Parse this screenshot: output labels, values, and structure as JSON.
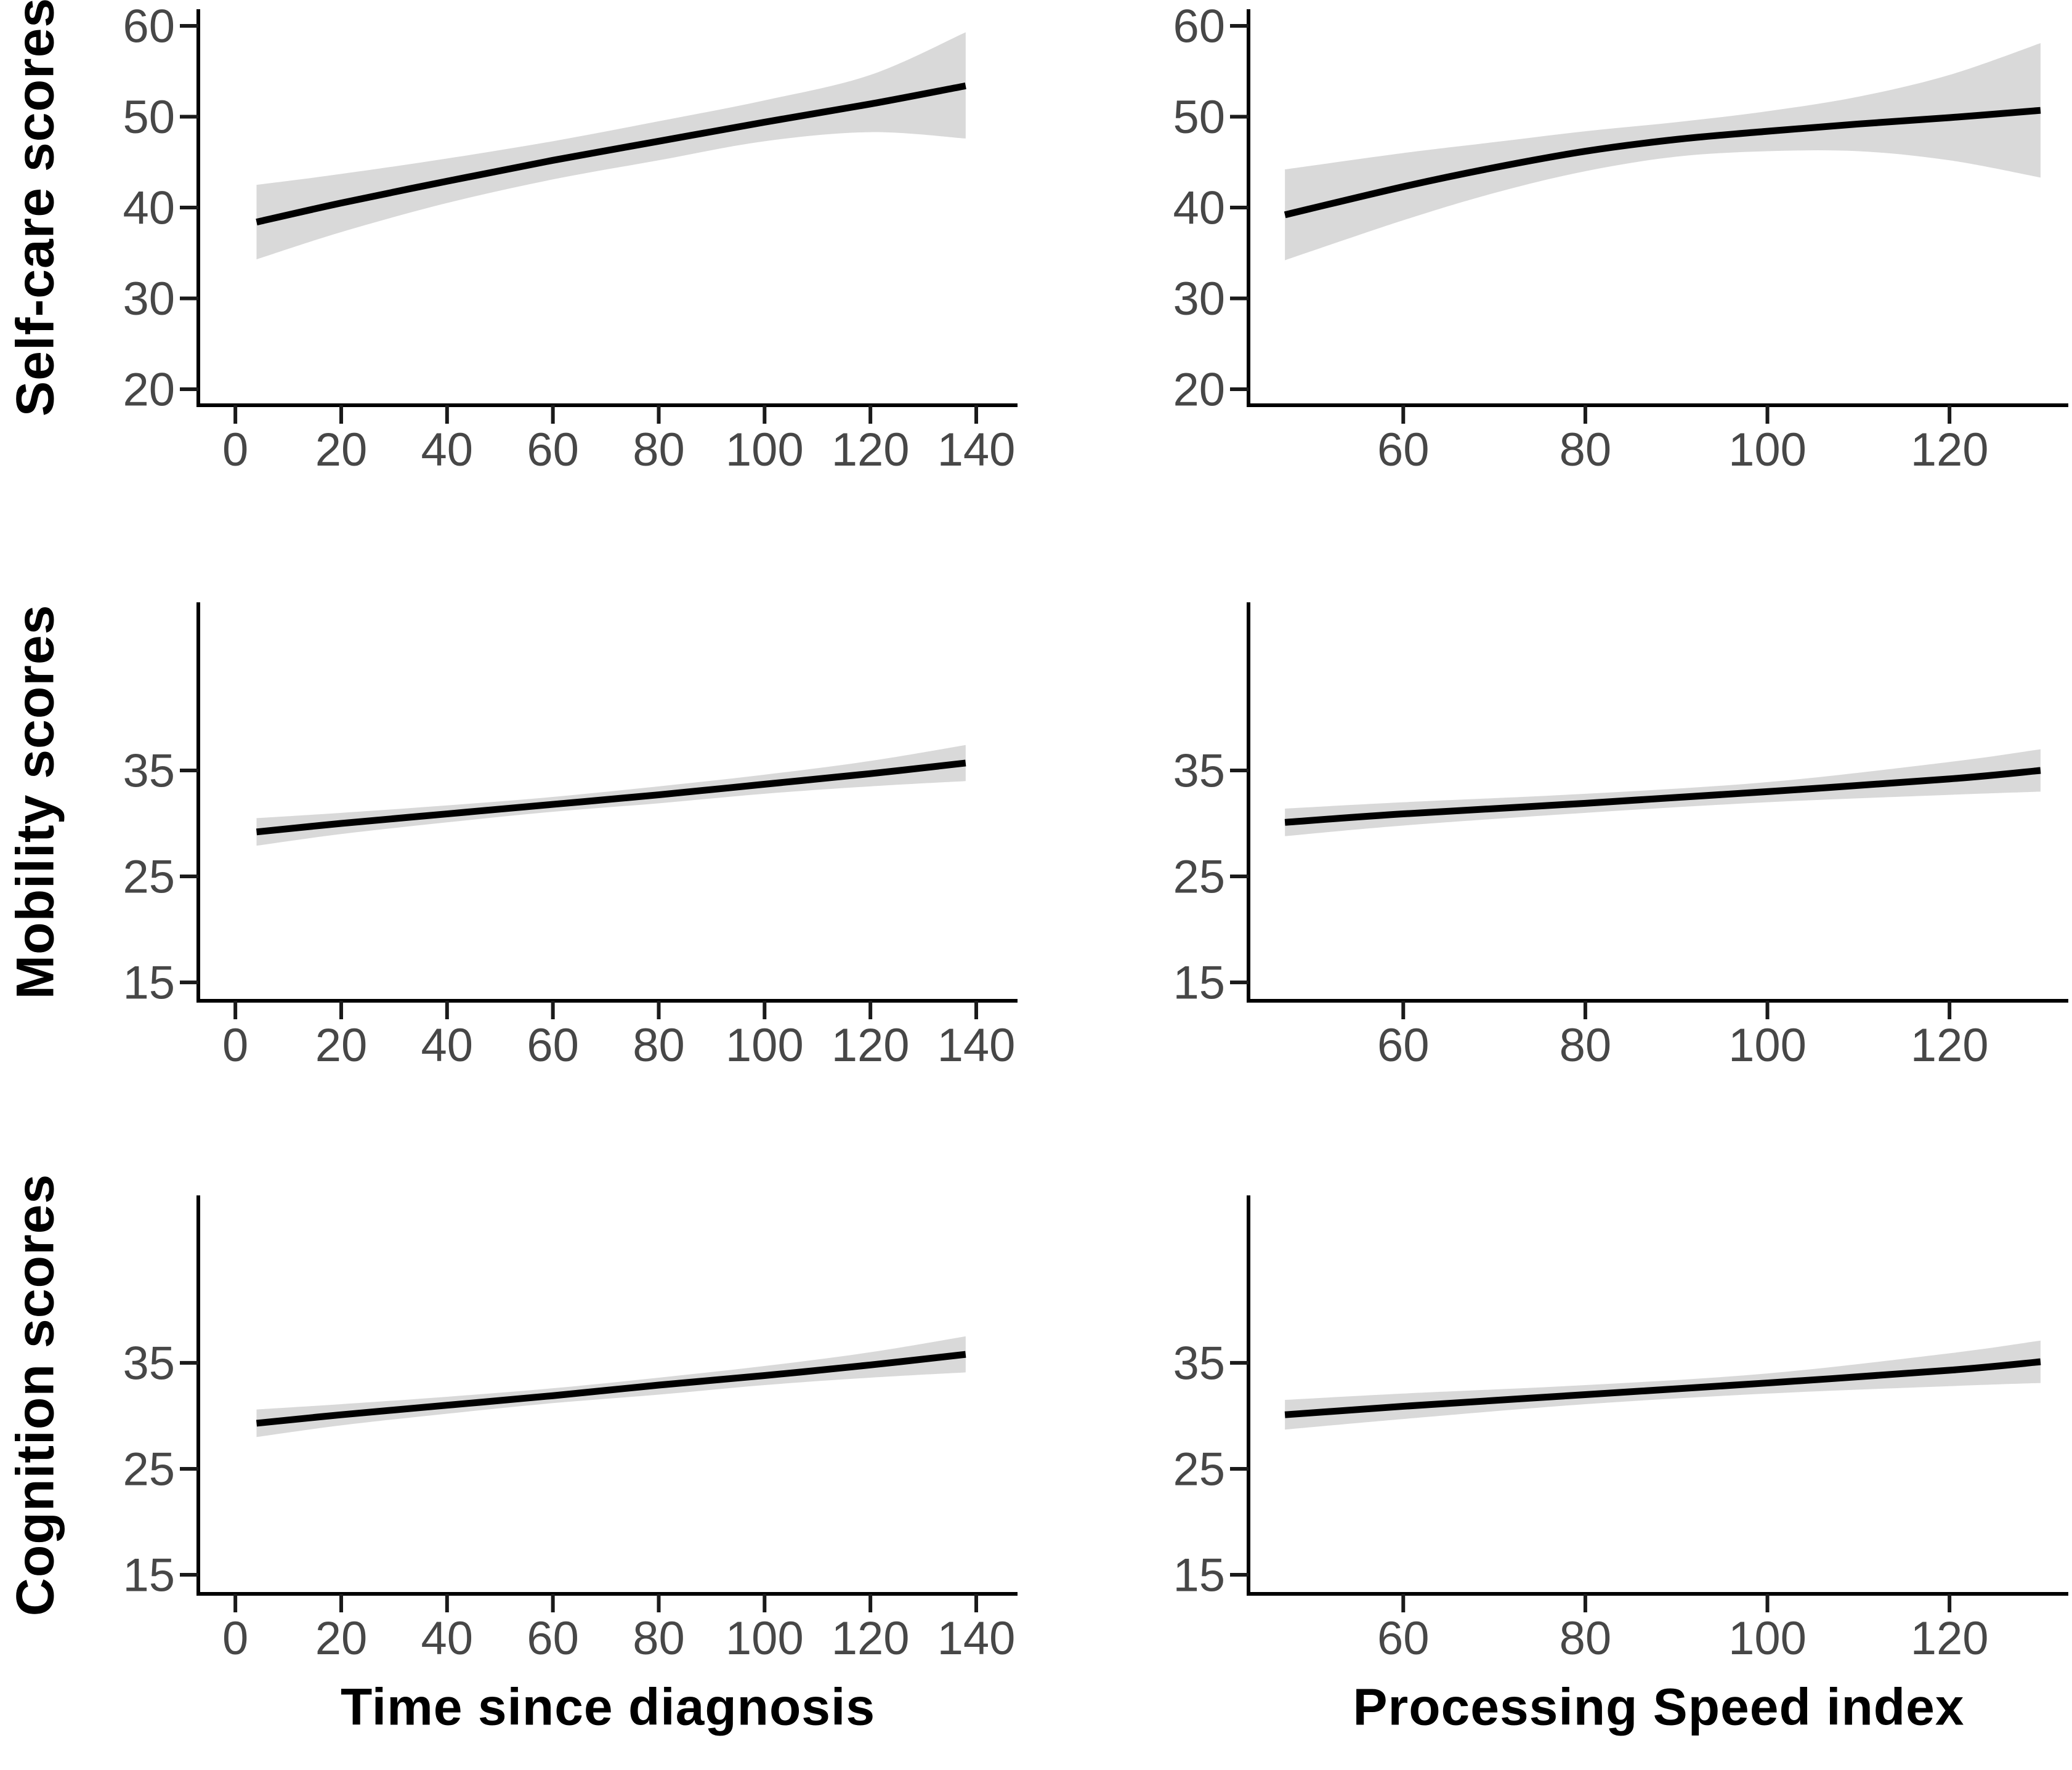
{
  "styles": {
    "background": "#ffffff",
    "line_color": "#000000",
    "band_color": "#d9d9d9",
    "axis_color": "#000000",
    "tick_color": "#1a1a1a",
    "tick_label_color": "#474747",
    "title_color": "#000000"
  },
  "chart_data": [
    {
      "id": "self-care-vs-time",
      "type": "line",
      "row": 0,
      "col": 0,
      "ylabel": "Self-care scores",
      "xlabel": "Time since diagnosis",
      "x_ticks": [
        0,
        20,
        40,
        60,
        80,
        100,
        120,
        140
      ],
      "y_ticks": [
        20,
        30,
        40,
        50,
        60
      ],
      "x_range": [
        -7.0,
        147.8
      ],
      "y_range": [
        18.24,
        61.83
      ],
      "grid": false,
      "legend": false,
      "x": [
        4,
        20,
        40,
        60,
        80,
        100,
        120,
        138
      ],
      "y": [
        38.4,
        40.5,
        42.9,
        45.2,
        47.3,
        49.4,
        51.4,
        53.4
      ],
      "ci_upper": [
        42.5,
        43.7,
        45.4,
        47.3,
        49.5,
        51.8,
        54.6,
        59.3
      ],
      "ci_lower": [
        34.3,
        37.3,
        40.5,
        43.1,
        45.2,
        47.3,
        48.3,
        47.6
      ]
    },
    {
      "id": "self-care-vs-processing-speed",
      "type": "line",
      "row": 0,
      "col": 1,
      "ylabel": "Self-care scores",
      "xlabel": "Processing Speed index",
      "x_ticks": [
        60,
        80,
        100,
        120
      ],
      "y_ticks": [
        20,
        30,
        40,
        50,
        60
      ],
      "x_range": [
        43.0,
        133.05
      ],
      "y_range": [
        18.24,
        61.83
      ],
      "grid": false,
      "legend": false,
      "x": [
        47,
        60,
        70,
        80,
        90,
        100,
        110,
        120,
        130
      ],
      "y": [
        39.2,
        42.3,
        44.4,
        46.2,
        47.5,
        48.4,
        49.2,
        49.9,
        50.7
      ],
      "ci_upper": [
        44.2,
        46.0,
        47.2,
        48.4,
        49.4,
        50.6,
        52.2,
        54.6,
        58.1
      ],
      "ci_lower": [
        34.2,
        38.6,
        41.6,
        44.0,
        45.6,
        46.2,
        46.2,
        45.2,
        43.3
      ]
    },
    {
      "id": "mobility-vs-time",
      "type": "line",
      "row": 1,
      "col": 0,
      "ylabel": "Mobility scores",
      "xlabel": "Time since diagnosis",
      "x_ticks": [
        0,
        20,
        40,
        60,
        80,
        100,
        120,
        140
      ],
      "y_ticks": [
        15,
        25,
        35
      ],
      "x_range": [
        -7.0,
        147.8
      ],
      "y_range": [
        13.26,
        50.87
      ],
      "grid": false,
      "legend": false,
      "x": [
        4,
        20,
        40,
        60,
        80,
        100,
        120,
        138
      ],
      "y": [
        29.2,
        30.0,
        30.9,
        31.8,
        32.7,
        33.7,
        34.7,
        35.7
      ],
      "ci_upper": [
        30.5,
        31.0,
        31.7,
        32.5,
        33.5,
        34.6,
        35.9,
        37.4
      ],
      "ci_lower": [
        27.9,
        29.0,
        30.1,
        31.1,
        31.9,
        32.8,
        33.5,
        34.0
      ]
    },
    {
      "id": "mobility-vs-processing-speed",
      "type": "line",
      "row": 1,
      "col": 1,
      "ylabel": "Mobility scores",
      "xlabel": "Processing Speed index",
      "x_ticks": [
        60,
        80,
        100,
        120
      ],
      "y_ticks": [
        15,
        25,
        35
      ],
      "x_range": [
        43.0,
        133.05
      ],
      "y_range": [
        13.26,
        50.87
      ],
      "grid": false,
      "legend": false,
      "x": [
        47,
        60,
        80,
        100,
        120,
        130
      ],
      "y": [
        30.1,
        30.9,
        31.9,
        33.0,
        34.2,
        35.0
      ],
      "ci_upper": [
        31.4,
        32.0,
        32.8,
        33.9,
        35.8,
        37.0
      ],
      "ci_lower": [
        28.8,
        29.8,
        31.0,
        32.0,
        32.7,
        33.0
      ]
    },
    {
      "id": "cognition-vs-time",
      "type": "line",
      "row": 2,
      "col": 0,
      "ylabel": "Cognition scores",
      "xlabel": "Time since diagnosis",
      "x_ticks": [
        0,
        20,
        40,
        60,
        80,
        100,
        120,
        140
      ],
      "y_ticks": [
        15,
        25,
        35
      ],
      "x_range": [
        -7.0,
        147.8
      ],
      "y_range": [
        13.2,
        50.8
      ],
      "grid": false,
      "legend": false,
      "x": [
        4,
        20,
        40,
        60,
        80,
        100,
        120,
        138
      ],
      "y": [
        29.3,
        30.1,
        31.0,
        31.9,
        32.9,
        33.8,
        34.8,
        35.8
      ],
      "ci_upper": [
        30.6,
        31.1,
        31.8,
        32.6,
        33.6,
        34.7,
        36.0,
        37.5
      ],
      "ci_lower": [
        28.0,
        29.1,
        30.2,
        31.2,
        32.0,
        32.9,
        33.6,
        34.1
      ]
    },
    {
      "id": "cognition-vs-processing-speed",
      "type": "line",
      "row": 2,
      "col": 1,
      "ylabel": "Cognition scores",
      "xlabel": "Processing Speed index",
      "x_ticks": [
        60,
        80,
        100,
        120
      ],
      "y_ticks": [
        15,
        25,
        35
      ],
      "x_range": [
        43.0,
        133.05
      ],
      "y_range": [
        13.2,
        50.8
      ],
      "grid": false,
      "legend": false,
      "x": [
        47,
        60,
        80,
        100,
        120,
        130
      ],
      "y": [
        30.1,
        30.9,
        32.0,
        33.1,
        34.3,
        35.1
      ],
      "ci_upper": [
        31.5,
        32.1,
        32.9,
        34.0,
        35.9,
        37.1
      ],
      "ci_lower": [
        28.7,
        29.7,
        31.1,
        32.1,
        32.8,
        33.1
      ]
    }
  ]
}
